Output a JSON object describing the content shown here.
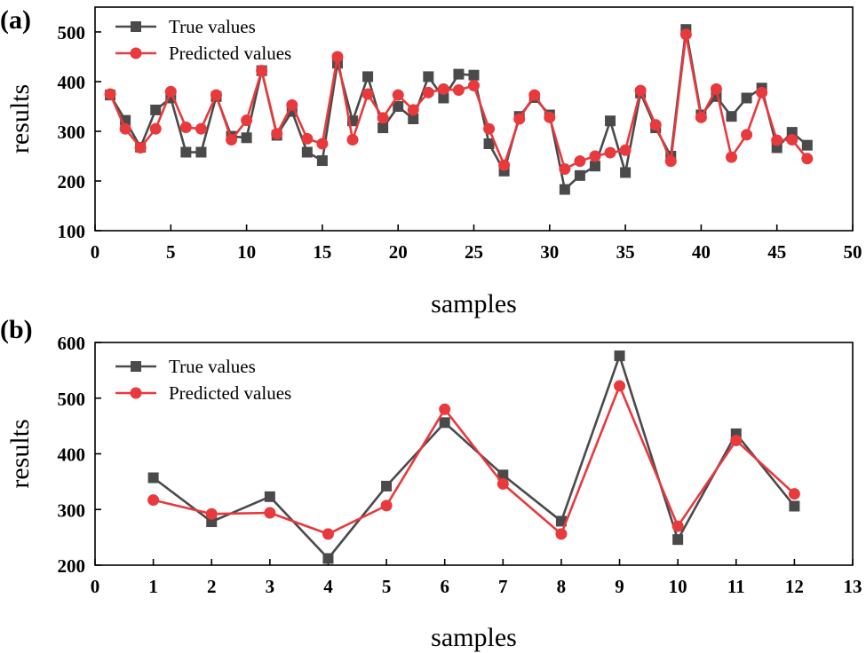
{
  "chart_data": [
    {
      "type": "line",
      "panel_label": "(a)",
      "xlabel": "samples",
      "ylabel": "results",
      "xlim": [
        0,
        50
      ],
      "ylim": [
        100,
        550
      ],
      "xticks": [
        "0",
        "5",
        "10",
        "15",
        "20",
        "25",
        "30",
        "35",
        "40",
        "45",
        "50"
      ],
      "xtick_values": [
        0,
        5,
        10,
        15,
        20,
        25,
        30,
        35,
        40,
        45,
        50
      ],
      "yticks": [
        "100",
        "200",
        "300",
        "400",
        "500"
      ],
      "ytick_values": [
        100,
        200,
        300,
        400,
        500
      ],
      "legend_position": "top-left",
      "x": [
        1,
        2,
        3,
        4,
        5,
        6,
        7,
        8,
        9,
        10,
        11,
        12,
        13,
        14,
        15,
        16,
        17,
        18,
        19,
        20,
        21,
        22,
        23,
        24,
        25,
        26,
        27,
        28,
        29,
        30,
        31,
        32,
        33,
        34,
        35,
        36,
        37,
        38,
        39,
        40,
        41,
        42,
        43,
        44,
        45,
        46,
        47
      ],
      "series": [
        {
          "name": "True values",
          "color": "#4a4a4a",
          "marker": "square",
          "values": [
            373,
            322,
            268,
            343,
            367,
            258,
            258,
            370,
            290,
            287,
            422,
            292,
            340,
            258,
            241,
            437,
            321,
            410,
            307,
            350,
            325,
            410,
            367,
            415,
            413,
            275,
            220,
            330,
            368,
            333,
            183,
            211,
            230,
            321,
            217,
            377,
            307,
            250,
            505,
            333,
            370,
            330,
            367,
            387,
            267,
            298,
            272
          ]
        },
        {
          "name": "Predicted values",
          "color": "#e8393d",
          "marker": "circle",
          "values": [
            375,
            305,
            267,
            305,
            380,
            308,
            305,
            373,
            283,
            322,
            422,
            295,
            353,
            285,
            275,
            450,
            283,
            375,
            327,
            373,
            343,
            378,
            385,
            383,
            392,
            305,
            232,
            325,
            373,
            328,
            224,
            240,
            250,
            257,
            262,
            382,
            313,
            240,
            495,
            328,
            385,
            248,
            293,
            378,
            282,
            283,
            245
          ]
        }
      ]
    },
    {
      "type": "line",
      "panel_label": "(b)",
      "xlabel": "samples",
      "ylabel": "results",
      "xlim": [
        0,
        13
      ],
      "ylim": [
        200,
        600
      ],
      "xticks": [
        "0",
        "1",
        "2",
        "3",
        "4",
        "5",
        "6",
        "7",
        "8",
        "9",
        "10",
        "11",
        "12",
        "13"
      ],
      "xtick_values": [
        0,
        1,
        2,
        3,
        4,
        5,
        6,
        7,
        8,
        9,
        10,
        11,
        12,
        13
      ],
      "yticks": [
        "200",
        "300",
        "400",
        "500",
        "600"
      ],
      "ytick_values": [
        200,
        300,
        400,
        500,
        600
      ],
      "legend_position": "top-left",
      "x": [
        1,
        2,
        3,
        4,
        5,
        6,
        7,
        8,
        9,
        10,
        11,
        12
      ],
      "series": [
        {
          "name": "True values",
          "color": "#4a4a4a",
          "marker": "square",
          "values": [
            357,
            278,
            323,
            212,
            342,
            456,
            362,
            279,
            576,
            246,
            436,
            306
          ]
        },
        {
          "name": "Predicted values",
          "color": "#e8393d",
          "marker": "circle",
          "values": [
            317,
            292,
            294,
            256,
            307,
            480,
            346,
            256,
            522,
            270,
            424,
            328
          ]
        }
      ]
    }
  ]
}
